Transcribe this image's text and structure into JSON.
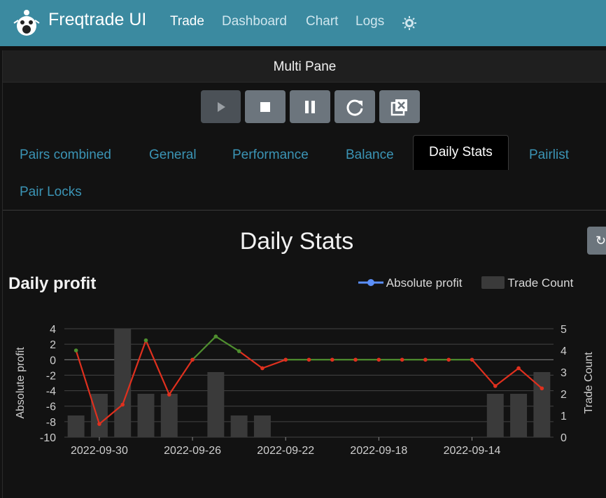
{
  "app": {
    "brand": "Freqtrade UI",
    "nav": [
      "Trade",
      "Dashboard",
      "Chart",
      "Logs"
    ],
    "active_nav": "Trade",
    "theme_icon": "sun-icon",
    "accent_color": "#3b8aa0"
  },
  "pane": {
    "title": "Multi Pane",
    "controls": [
      {
        "name": "start-button",
        "icon": "play-icon",
        "enabled": false
      },
      {
        "name": "stop-button",
        "icon": "stop-icon",
        "enabled": true
      },
      {
        "name": "pause-button",
        "icon": "pause-icon",
        "enabled": true
      },
      {
        "name": "reload-button",
        "icon": "reload-icon",
        "enabled": true
      },
      {
        "name": "forceexit-button",
        "icon": "close-box-icon",
        "enabled": true
      }
    ],
    "tabs": [
      "Pairs combined",
      "General",
      "Performance",
      "Balance",
      "Daily Stats",
      "Pairlist",
      "Pair Locks"
    ],
    "active_tab": "Daily Stats"
  },
  "section": {
    "title": "Daily Stats",
    "refresh_icon": "refresh-icon"
  },
  "chart_data": {
    "type": "bar+line",
    "title": "Daily profit",
    "legend": [
      "Absolute profit",
      "Trade Count"
    ],
    "legend_position": "top-right",
    "ylabel_left": "Absolute profit",
    "ylabel_right": "Trade Count",
    "yticks_left": [
      "4",
      "2",
      "0",
      "-2",
      "-4",
      "-6",
      "-8",
      "-10"
    ],
    "yticks_right": [
      "5",
      "4",
      "3",
      "2",
      "1",
      "0"
    ],
    "ylim_left": [
      -10,
      4
    ],
    "ylim_right": [
      0,
      5
    ],
    "x_tick_labels": [
      "2022-09-30",
      "2022-09-26",
      "2022-09-22",
      "2022-09-18",
      "2022-09-14"
    ],
    "categories": [
      "2022-10-01",
      "2022-09-30",
      "2022-09-29",
      "2022-09-28",
      "2022-09-27",
      "2022-09-26",
      "2022-09-25",
      "2022-09-24",
      "2022-09-23",
      "2022-09-22",
      "2022-09-21",
      "2022-09-20",
      "2022-09-19",
      "2022-09-18",
      "2022-09-17",
      "2022-09-16",
      "2022-09-15",
      "2022-09-14",
      "2022-09-13",
      "2022-09-12",
      "2022-09-11"
    ],
    "series": [
      {
        "name": "Absolute profit",
        "values": [
          1.2,
          -8.3,
          -5.8,
          2.5,
          -4.5,
          0.0,
          3.0,
          1.1,
          -1.1,
          0.0,
          0.0,
          0.0,
          0.0,
          0.0,
          0.0,
          0.0,
          0.0,
          0.0,
          -3.4,
          -1.1,
          -3.7
        ]
      },
      {
        "name": "Trade Count",
        "values": [
          1,
          2,
          5,
          2,
          2,
          0,
          3,
          1,
          1,
          0,
          0,
          0,
          0,
          0,
          0,
          0,
          0,
          0,
          2,
          2,
          3
        ]
      }
    ],
    "colors": {
      "positive": "#4f8f2f",
      "negative": "#e0301e",
      "bars": "#3a3a3a",
      "legend_line": "#5b8ff9"
    },
    "grid": true
  }
}
